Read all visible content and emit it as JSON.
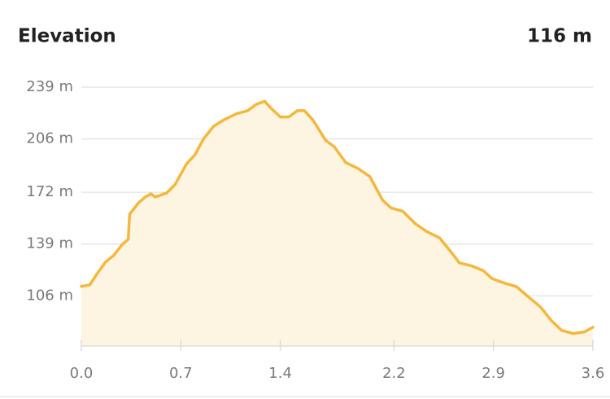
{
  "chart_data": {
    "type": "area",
    "title": "Elevation",
    "annotation": "116 m",
    "color": "#f5b83d",
    "fill": "#fdf5e1",
    "grid": true,
    "x": [
      0,
      0.06,
      0.11,
      0.17,
      0.23,
      0.29,
      0.33,
      0.34,
      0.4,
      0.45,
      0.49,
      0.52,
      0.6,
      0.66,
      0.74,
      0.8,
      0.86,
      0.93,
      1.0,
      1.09,
      1.17,
      1.23,
      1.29,
      1.33,
      1.4,
      1.46,
      1.52,
      1.57,
      1.63,
      1.72,
      1.78,
      1.86,
      1.95,
      2.03,
      2.12,
      2.18,
      2.26,
      2.35,
      2.43,
      2.52,
      2.61,
      2.66,
      2.75,
      2.83,
      2.89,
      2.98,
      3.06,
      3.15,
      3.23,
      3.31,
      3.38,
      3.46,
      3.54,
      3.6
    ],
    "values": [
      112,
      113,
      120,
      127.5,
      132,
      139,
      142,
      158,
      165,
      169,
      171,
      169,
      171.5,
      177,
      190,
      196,
      206,
      214,
      218,
      222,
      224,
      228,
      230,
      226,
      220,
      220,
      224,
      224,
      218,
      205,
      201,
      191,
      187,
      182,
      167,
      162,
      160,
      152,
      147,
      143,
      133,
      127,
      125,
      122,
      117,
      114,
      112,
      105,
      99,
      90,
      84,
      82,
      83,
      86
    ],
    "xlim": [
      0,
      3.6
    ],
    "xticks": [
      {
        "value": 0,
        "label": "0.0"
      },
      0.7,
      1.4,
      2.2,
      2.9,
      3.6
    ],
    "ylim": [
      74,
      239
    ],
    "yticks": [
      {
        "value": 106,
        "label": "106 m"
      },
      {
        "value": 139,
        "label": "139 m"
      },
      {
        "value": 172,
        "label": "172 m"
      },
      {
        "value": 206,
        "label": "206 m"
      },
      {
        "value": 239,
        "label": "239 m"
      }
    ]
  }
}
